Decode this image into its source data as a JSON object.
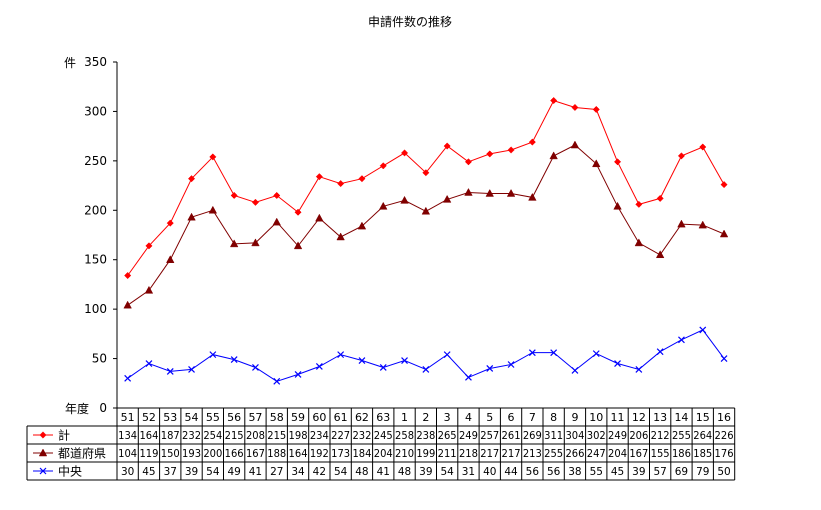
{
  "chart_data": {
    "type": "line",
    "title": "申請件数の推移",
    "ylabel": "件",
    "xlabel": "年度",
    "ylim": [
      0,
      350
    ],
    "yticks": [
      0,
      50,
      100,
      150,
      200,
      250,
      300,
      350
    ],
    "grid": false,
    "legend": "data-table",
    "categories": [
      "51",
      "52",
      "53",
      "54",
      "55",
      "56",
      "57",
      "58",
      "59",
      "60",
      "61",
      "62",
      "63",
      "1",
      "2",
      "3",
      "4",
      "5",
      "6",
      "7",
      "8",
      "9",
      "10",
      "11",
      "12",
      "13",
      "14",
      "15",
      "16"
    ],
    "series": [
      {
        "name": "計",
        "color": "#ff0000",
        "marker": "diamond-icon",
        "values": [
          134,
          164,
          187,
          232,
          254,
          215,
          208,
          215,
          198,
          234,
          227,
          232,
          245,
          258,
          238,
          265,
          249,
          257,
          261,
          269,
          311,
          304,
          302,
          249,
          206,
          212,
          255,
          264,
          226
        ]
      },
      {
        "name": "都道府県",
        "color": "#800000",
        "marker": "triangle-icon",
        "values": [
          104,
          119,
          150,
          193,
          200,
          166,
          167,
          188,
          164,
          192,
          173,
          184,
          204,
          210,
          199,
          211,
          218,
          217,
          217,
          213,
          255,
          266,
          247,
          204,
          167,
          155,
          186,
          185,
          176
        ]
      },
      {
        "name": "中央",
        "color": "#0000ff",
        "marker": "cross-icon",
        "values": [
          30,
          45,
          37,
          39,
          54,
          49,
          41,
          27,
          34,
          42,
          54,
          48,
          41,
          48,
          39,
          54,
          31,
          40,
          44,
          56,
          56,
          38,
          55,
          45,
          39,
          57,
          69,
          79,
          50
        ]
      }
    ]
  }
}
